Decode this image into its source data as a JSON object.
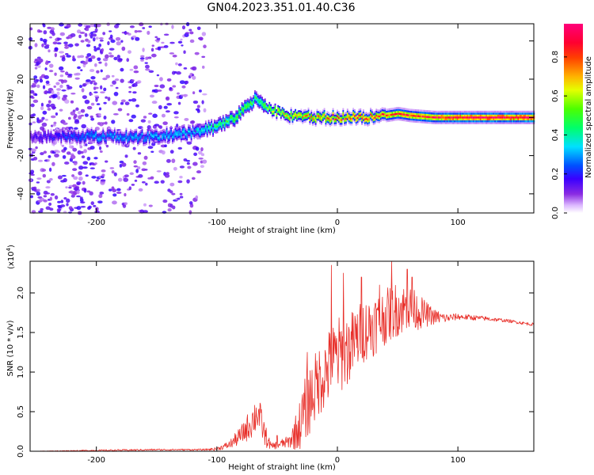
{
  "figure_title": "GN04.2023.351.01.40.C36",
  "chart_data": [
    {
      "type": "heatmap",
      "xlabel": "Height of straight line (km)",
      "ylabel": "Frequency (Hz)",
      "xlim": [
        -255,
        163
      ],
      "ylim": [
        -50,
        49
      ],
      "xticks": [
        -200,
        -100,
        0,
        100
      ],
      "yticks": [
        -40,
        -20,
        0,
        20,
        40
      ],
      "xtick_labels": [
        "-200",
        "-100",
        "0",
        "100"
      ],
      "ytick_labels": [
        "-40",
        "-20",
        "0",
        "20",
        "40"
      ],
      "colorbar": {
        "label": "Normalized spectral amplitude",
        "range": [
          0,
          0.97
        ],
        "ticks": [
          0.0,
          0.2,
          0.4,
          0.6,
          0.8
        ],
        "tick_labels": [
          "0.0",
          "0.2",
          "0.4",
          "0.6",
          "0.8"
        ],
        "colormap": "rainbow (white → violet → blue → cyan → green → yellow → orange → red → magenta)"
      },
      "ridge_frequency_hz": {
        "x": [
          -255,
          -200,
          -160,
          -120,
          -100,
          -85,
          -75,
          -68,
          -60,
          -50,
          -40,
          -20,
          0,
          20,
          40,
          50,
          60,
          80,
          100,
          130,
          163
        ],
        "y": [
          -10,
          -10,
          -10,
          -8,
          -5,
          0,
          6,
          10,
          5,
          3,
          1,
          0,
          0,
          0,
          1,
          2,
          1,
          0,
          0,
          0,
          0
        ],
        "peak_amplitude": [
          0.15,
          0.3,
          0.3,
          0.35,
          0.45,
          0.5,
          0.5,
          0.45,
          0.55,
          0.65,
          0.7,
          0.75,
          0.8,
          0.85,
          0.8,
          0.85,
          0.85,
          0.9,
          0.95,
          0.97,
          0.97
        ]
      },
      "grid": false
    },
    {
      "type": "line",
      "xlabel": "Height of straight line (km)",
      "ylabel": "SNR (10 * v/v)",
      "y_multiplier": "(x10^4)",
      "y_multiplier_base": "(x10",
      "y_multiplier_exp": "4",
      "y_multiplier_close": ")",
      "xlim": [
        -255,
        163
      ],
      "ylim": [
        0,
        2.4
      ],
      "xticks": [
        -200,
        -100,
        0,
        100
      ],
      "yticks": [
        0.0,
        0.5,
        1.0,
        1.5,
        2.0
      ],
      "xtick_labels": [
        "-200",
        "-100",
        "0",
        "100"
      ],
      "ytick_labels": [
        "0.0",
        "0.5",
        "1.0",
        "1.5",
        "2.0"
      ],
      "series": [
        {
          "color": "#e8302a",
          "envelope": {
            "x": [
              -255,
              -200,
              -150,
              -110,
              -100,
              -90,
              -80,
              -72,
              -66,
              -60,
              -55,
              -50,
              -40,
              -32,
              -25,
              -15,
              -5,
              0,
              10,
              20,
              30,
              40,
              45,
              50,
              60,
              70,
              80,
              90,
              100,
              120,
              140,
              163
            ],
            "mean": [
              0.0,
              0.01,
              0.02,
              0.02,
              0.03,
              0.08,
              0.2,
              0.35,
              0.5,
              0.2,
              0.06,
              0.08,
              0.12,
              0.3,
              0.6,
              0.9,
              1.1,
              1.2,
              1.3,
              1.5,
              1.6,
              1.7,
              1.75,
              1.8,
              1.8,
              1.75,
              1.7,
              1.68,
              1.7,
              1.68,
              1.65,
              1.6
            ],
            "spread": [
              0.0,
              0.01,
              0.01,
              0.01,
              0.02,
              0.05,
              0.12,
              0.2,
              0.25,
              0.15,
              0.04,
              0.05,
              0.08,
              0.3,
              0.45,
              0.45,
              0.5,
              0.5,
              0.45,
              0.4,
              0.4,
              0.35,
              0.35,
              0.35,
              0.3,
              0.2,
              0.1,
              0.06,
              0.04,
              0.03,
              0.02,
              0.02
            ]
          },
          "spikes": [
            [
              -50,
              0.2
            ],
            [
              -25,
              1.25
            ],
            [
              -5,
              2.35
            ],
            [
              5,
              2.25
            ],
            [
              20,
              2.2
            ],
            [
              35,
              2.1
            ],
            [
              45,
              2.4
            ],
            [
              58,
              2.3
            ],
            [
              62,
              2.2
            ]
          ]
        }
      ],
      "grid": false
    }
  ]
}
